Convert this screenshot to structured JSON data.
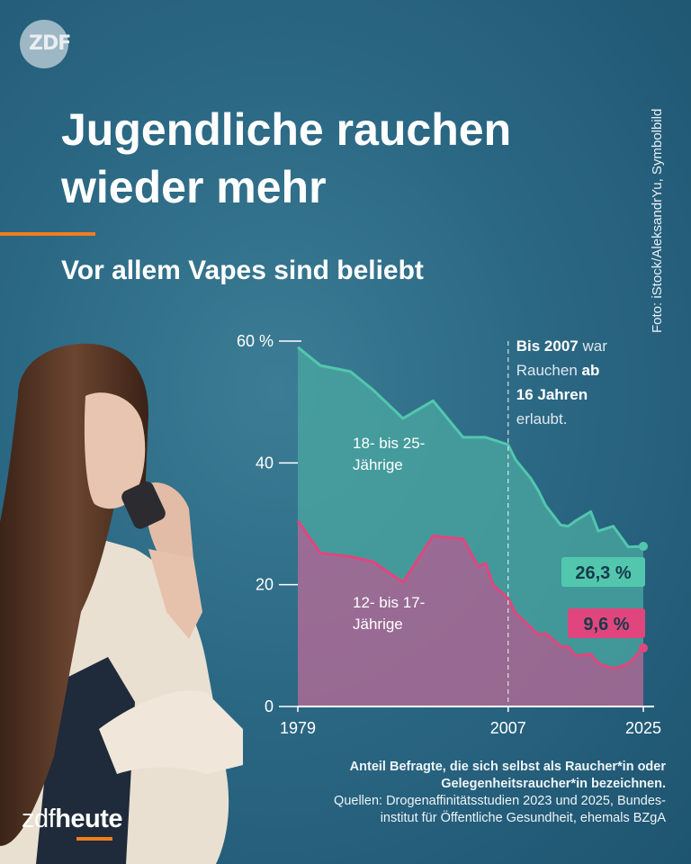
{
  "header": {
    "logo_text": "ZDF",
    "title": "Jugendliche rauchen wieder mehr",
    "subtitle": "Vor allem Vapes sind beliebt",
    "photo_credit": "Foto: iStock/AleksandrYu, Symbolbild"
  },
  "colors": {
    "teal": "#52c7ae",
    "teal_fill": "#4aa6a0",
    "pink": "#e0467d",
    "pink_fill": "#b46b97",
    "accent": "#f07d1e"
  },
  "chart_data": {
    "type": "area",
    "xlim": [
      1979,
      2025
    ],
    "ylim": [
      0,
      60
    ],
    "x_ticks": [
      "1979",
      "2007",
      "2025"
    ],
    "y_ticks": [
      "0",
      "20",
      "40",
      "60 %"
    ],
    "y_tick_values": [
      0,
      20,
      40,
      60
    ],
    "x_tick_values": [
      1979,
      2007,
      2025
    ],
    "grid": false,
    "series": [
      {
        "name": "18- bis 25-Jährige",
        "label_lines": [
          "18- bis 25-",
          "Jährige"
        ],
        "points": [
          [
            1979,
            59.0
          ],
          [
            1982,
            56.0
          ],
          [
            1986,
            55.0
          ],
          [
            1989,
            52.0
          ],
          [
            1993,
            47.3
          ],
          [
            1997,
            50.2
          ],
          [
            2001,
            44.2
          ],
          [
            2004,
            44.2
          ],
          [
            2007,
            43.0
          ],
          [
            2008,
            40.5
          ],
          [
            2010,
            37.5
          ],
          [
            2011,
            35.5
          ],
          [
            2012,
            33.0
          ],
          [
            2014,
            29.8
          ],
          [
            2015,
            29.6
          ],
          [
            2016,
            30.5
          ],
          [
            2018,
            32.0
          ],
          [
            2019,
            28.8
          ],
          [
            2021,
            29.6
          ],
          [
            2023,
            26.2
          ],
          [
            2025,
            26.3
          ]
        ],
        "end_label": "26,3 %"
      },
      {
        "name": "12- bis 17-Jährige",
        "label_lines": [
          "12- bis 17-",
          "Jährige"
        ],
        "points": [
          [
            1979,
            30.5
          ],
          [
            1982,
            25.2
          ],
          [
            1986,
            24.6
          ],
          [
            1989,
            23.8
          ],
          [
            1993,
            20.4
          ],
          [
            1997,
            28.0
          ],
          [
            2001,
            27.5
          ],
          [
            2003,
            23.0
          ],
          [
            2004,
            23.5
          ],
          [
            2005,
            20.0
          ],
          [
            2007,
            17.8
          ],
          [
            2008,
            15.3
          ],
          [
            2010,
            13.0
          ],
          [
            2011,
            11.8
          ],
          [
            2012,
            12.0
          ],
          [
            2014,
            9.9
          ],
          [
            2015,
            9.8
          ],
          [
            2016,
            8.3
          ],
          [
            2018,
            8.6
          ],
          [
            2019,
            7.1
          ],
          [
            2021,
            6.2
          ],
          [
            2023,
            7.0
          ],
          [
            2025,
            9.6
          ]
        ],
        "end_label": "9,6 %"
      }
    ],
    "annotation": {
      "x": 2007,
      "segments": [
        [
          {
            "t": "Bis 2007",
            "b": true
          },
          {
            "t": " war",
            "b": false
          }
        ],
        [
          {
            "t": "Rauchen ",
            "b": false
          },
          {
            "t": "ab",
            "b": true
          }
        ],
        [
          {
            "t": "16 Jahren",
            "b": true
          }
        ],
        [
          {
            "t": "erlaubt.",
            "b": false
          }
        ]
      ]
    }
  },
  "footnote": {
    "description_line1": "Anteil Befragte, die sich selbst als Raucher*in oder",
    "description_line2": "Gelegenheitsraucher*in bezeichnen.",
    "sources_line1": "Quellen: Drogenaffinitätsstudien 2023 und 2025, Bundes-",
    "sources_line2": "institut für Öffentliche Gesundheit, ehemals BZgA"
  },
  "brand": {
    "part1": "zdf",
    "part2": "heute"
  }
}
